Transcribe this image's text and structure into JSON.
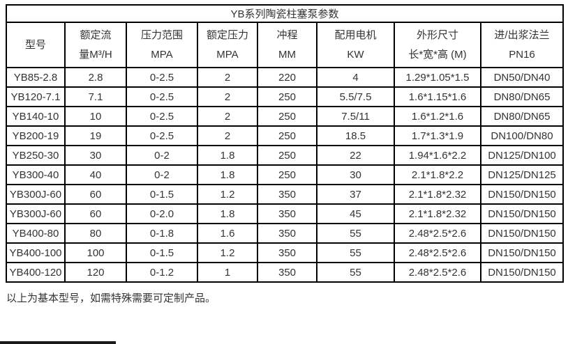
{
  "page": {
    "title": "YB系列陶瓷柱塞泵参数",
    "footer_note": "以上为基本型号，如需特殊需要可定制产品。"
  },
  "colors": {
    "text": "#333333",
    "border": "#000000",
    "background": "#ffffff"
  },
  "table": {
    "columns": [
      {
        "line1": "型号",
        "line2": ""
      },
      {
        "line1": "额定流",
        "line2": "量M³/H"
      },
      {
        "line1": "压力范围",
        "line2": "MPA"
      },
      {
        "line1": "额定压力",
        "line2": "MPA"
      },
      {
        "line1": "冲程",
        "line2": "MM"
      },
      {
        "line1": "配用电机",
        "line2": "KW"
      },
      {
        "line1": "外形尺寸",
        "line2": "长*宽*高 (M)"
      },
      {
        "line1": "进/出浆法兰",
        "line2": "PN16"
      }
    ],
    "rows": [
      [
        "YB85-2.8",
        "2.8",
        "0-2.5",
        "2",
        "220",
        "4",
        "1.29*1.05*1.5",
        "DN50/DN40"
      ],
      [
        "YB120-7.1",
        "7.1",
        "0-2.5",
        "2",
        "250",
        "5.5/7.5",
        "1.6*1.15*1.6",
        "DN80/DN65"
      ],
      [
        "YB140-10",
        "10",
        "0-2.5",
        "2",
        "250",
        "7.5/11",
        "1.6*1.2*1.6",
        "DN80/DN65"
      ],
      [
        "YB200-19",
        "19",
        "0-2.5",
        "2",
        "250",
        "18.5",
        "1.7*1.3*1.9",
        "DN100/DN80"
      ],
      [
        "YB250-30",
        "30",
        "0-2",
        "1.8",
        "250",
        "22",
        "1.94*1.6*2.2",
        "DN125/DN100"
      ],
      [
        "YB300-40",
        "40",
        "0-2",
        "1.8",
        "250",
        "30",
        "2.1*1.8*2.2",
        "DN125/DN125"
      ],
      [
        "YB300J-60",
        "60",
        "0-1.5",
        "1.2",
        "350",
        "37",
        "2.1*1.8*2.32",
        "DN150/DN150"
      ],
      [
        "YB300J-60",
        "60",
        "0-2.0",
        "1.8",
        "350",
        "45",
        "2.1*1.8*2.32",
        "DN150/DN150"
      ],
      [
        "YB400-80",
        "80",
        "0-1.8",
        "1.6",
        "350",
        "55",
        "2.48*2.5*2.6",
        "DN150/DN150"
      ],
      [
        "YB400-100",
        "100",
        "0-1.5",
        "1.2",
        "350",
        "55",
        "2.48*2.5*2.6",
        "DN150/DN150"
      ],
      [
        "YB400-120",
        "120",
        "0-1.2",
        "1",
        "350",
        "55",
        "2.48*2.5*2.6",
        "DN150/DN150"
      ]
    ]
  }
}
